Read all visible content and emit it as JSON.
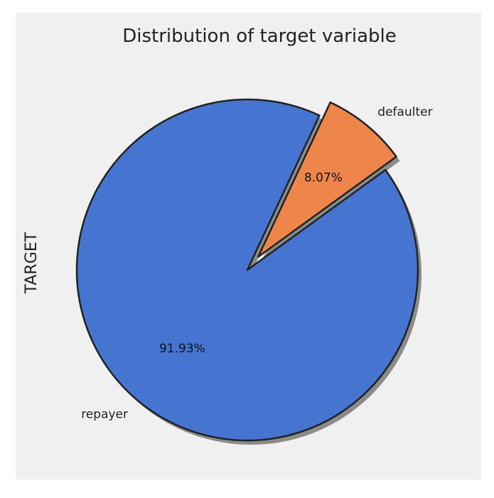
{
  "chart_data": {
    "type": "pie",
    "title": "Distribution of target variable",
    "ylabel": "TARGET",
    "categories": [
      "repayer",
      "defaulter"
    ],
    "values": [
      91.93,
      8.07
    ],
    "value_labels": [
      "91.93%",
      "8.07%"
    ],
    "colors": [
      "#4575d1",
      "#ee854a"
    ],
    "explode": [
      0,
      0.1
    ],
    "shadow": true,
    "edge_color": "#222222"
  }
}
